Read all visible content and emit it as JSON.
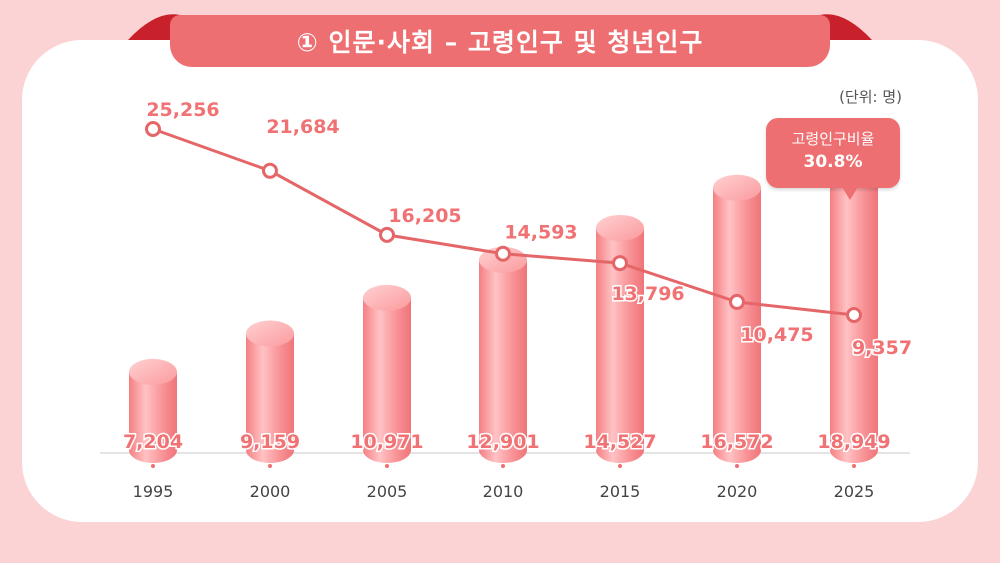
{
  "banner_title": "① 인문·사회 – 고령인구 및 청년인구",
  "unit_label": "(단위: 명)",
  "callout": {
    "label": "고령인구비율",
    "value": "30.8%"
  },
  "colors": {
    "background": "#fbd3d5",
    "accent": "#ee6f71",
    "bar": "#f58f92",
    "line": "#e56668",
    "line_label": "#f07274",
    "bar_label": "#f07274"
  },
  "chart_data": {
    "type": "bar",
    "categories": [
      "1995",
      "2000",
      "2005",
      "2010",
      "2015",
      "2020",
      "2025"
    ],
    "series": [
      {
        "type": "bar",
        "values": [
          7204,
          9159,
          10971,
          12901,
          14527,
          16572,
          18949
        ]
      },
      {
        "type": "line",
        "values": [
          25256,
          21684,
          16205,
          14593,
          13796,
          10475,
          9357
        ]
      }
    ],
    "bar_labels": [
      "7,204",
      "9,159",
      "10,971",
      "12,901",
      "14,527",
      "16,572",
      "18,949"
    ],
    "line_labels": [
      "25,256",
      "21,684",
      "16,205",
      "14,593",
      "13,796",
      "10,475",
      "9,357"
    ],
    "grid": false,
    "legend": "none"
  }
}
